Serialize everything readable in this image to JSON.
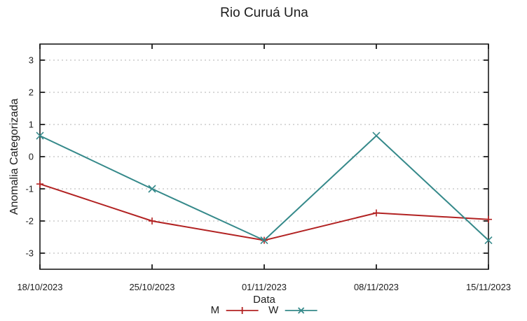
{
  "chart_data": {
    "type": "line",
    "title": "Rio Curuá Una",
    "xlabel": "Data",
    "ylabel": "Anomalia Categorizada",
    "categories": [
      "18/10/2023",
      "25/10/2023",
      "01/11/2023",
      "08/11/2023",
      "15/11/2023"
    ],
    "series": [
      {
        "name": "M",
        "color": "#b22222",
        "marker": "plus",
        "values": [
          -0.85,
          -2.0,
          -2.6,
          -1.75,
          -1.95
        ]
      },
      {
        "name": "W",
        "color": "#35898a",
        "marker": "cross",
        "values": [
          0.65,
          -1.0,
          -2.6,
          0.65,
          -2.6
        ]
      }
    ],
    "yticks": [
      -3,
      -2,
      -1,
      0,
      1,
      2,
      3
    ],
    "ylim": [
      -3.5,
      3.5
    ],
    "grid": "horizontal-dotted",
    "legend_position": "bottom-center"
  },
  "colors": {
    "background": "#ffffff",
    "axis": "#1c1c1c",
    "grid": "#b0b0b0",
    "text": "#1c1c1c"
  }
}
